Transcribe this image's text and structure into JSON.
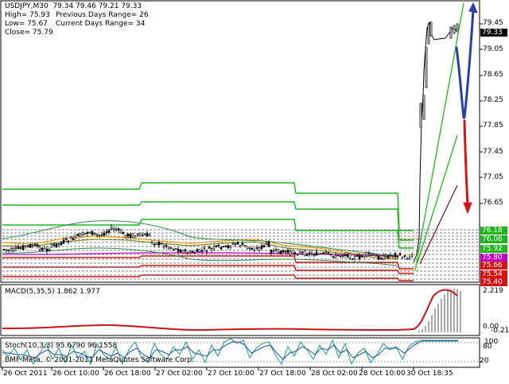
{
  "chart_header": {
    "symbol": "USDJPY,M30",
    "ohlc": "79.34 79.46 79.21 79.33",
    "high": "High= 75.93",
    "low": "Low= 75.67",
    "close": "Close= 75.79",
    "prev_range": "Previous Days Range= 26",
    "curr_range": "Current Days Range= 34"
  },
  "price_axis": {
    "ticks": [
      "79.45",
      "79.05",
      "78.65",
      "78.25",
      "77.85",
      "77.45",
      "77.05",
      "76.65"
    ],
    "current_price": "79.33",
    "level_tags": [
      {
        "label": "76.18",
        "color": "#1fb51f"
      },
      {
        "label": "76.06",
        "color": "#1fb51f"
      },
      {
        "label": "75.92",
        "color": "#1fb51f"
      },
      {
        "label": "75.80",
        "color": "#c000c0"
      },
      {
        "label": "75.66",
        "color": "#d41414"
      },
      {
        "label": "75.54",
        "color": "#d41414"
      },
      {
        "label": "75.40",
        "color": "#d41414"
      }
    ]
  },
  "macd": {
    "label": "MACD(5,35,5) 1.862 1.977",
    "ticks": [
      "2.219",
      "0.00",
      "-0.21"
    ]
  },
  "stoch": {
    "label": "Stoch(10,3,3) 95.6790 96.1558",
    "ticks": [
      "100",
      "80",
      "20"
    ]
  },
  "copyright": "BMF-Meta, © 2001-2011 MetaQuotes Software Corp.",
  "time_axis": [
    "26 Oct 2011",
    "26 Oct 10:00",
    "26 Oct 18:00",
    "27 Oct 02:00",
    "27 Oct 10:00",
    "27 Oct 18:00",
    "28 Oct 02:00",
    "28 Oct 10:00",
    "30 Oct 18:35"
  ],
  "colors": {
    "background": "#ffffff",
    "candle_up": "#ffffff",
    "candle_down": "#000000",
    "green_levels": "#1fb51f",
    "red_levels": "#d41414",
    "pivot": "#c000c0",
    "forecast_up": "#2a3fa6",
    "forecast_down": "#d41414",
    "macd_signal": "#c81414",
    "macd_hist": "#a8a8a8",
    "stoch_main": "#1a9a7a",
    "stoch_signal": "#1a4fa8"
  }
}
